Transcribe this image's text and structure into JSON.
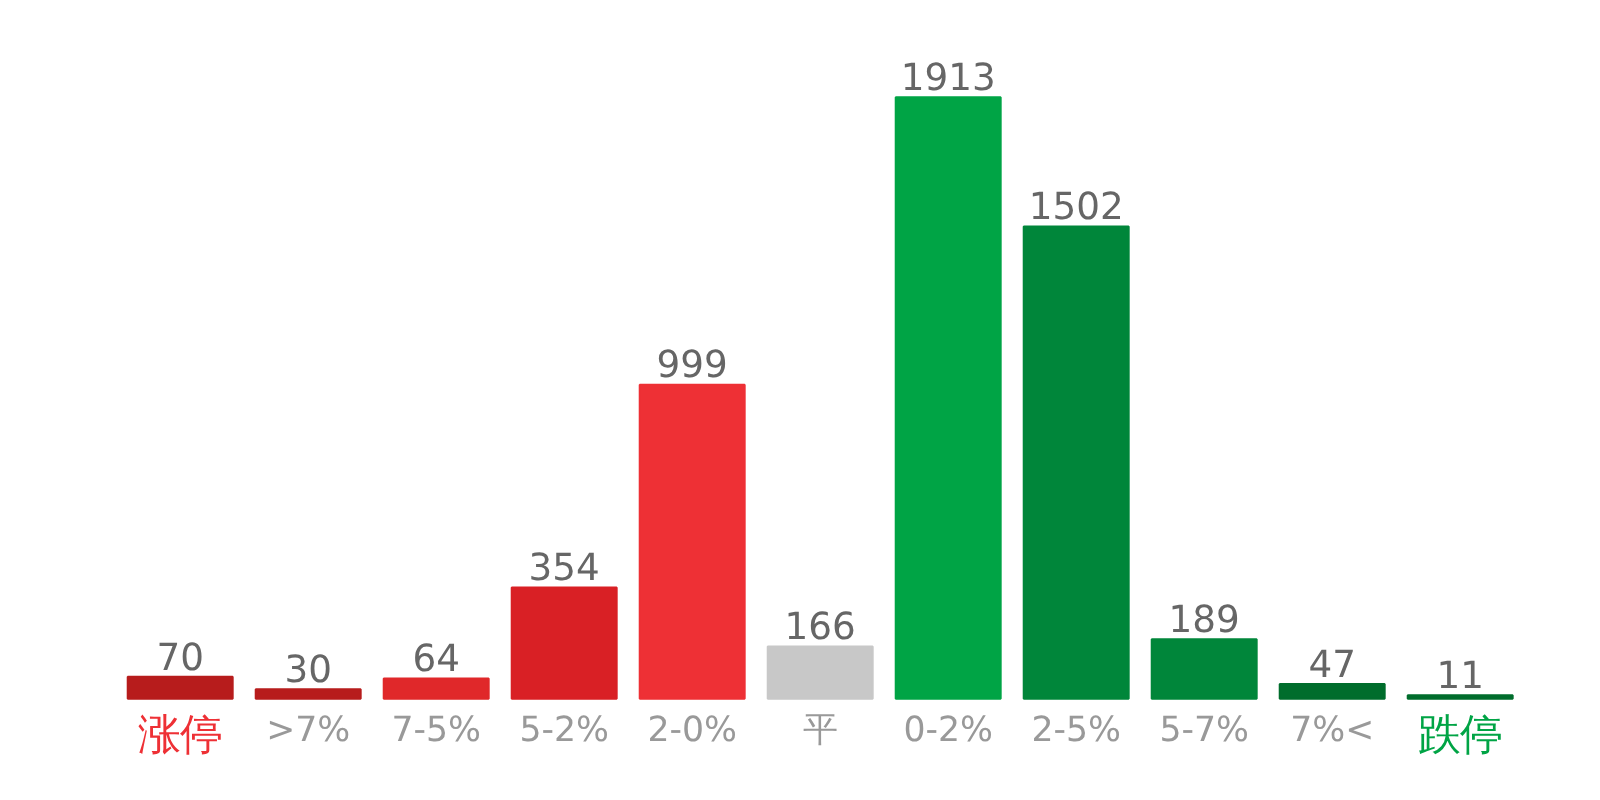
{
  "chart_data": {
    "type": "bar",
    "categories": [
      "涨停",
      ">7%",
      "7-5%",
      "5-2%",
      "2-0%",
      "平",
      "0-2%",
      "2-5%",
      "5-7%",
      "7%<",
      "跌停"
    ],
    "values": [
      70,
      30,
      64,
      354,
      999,
      166,
      1913,
      1502,
      189,
      47,
      11
    ],
    "colors": [
      "#b71c1c",
      "#b71c1c",
      "#e0282a",
      "#d92025",
      "#ee3035",
      "#c8c8c8",
      "#00a445",
      "#00863a",
      "#00863a",
      "#006d2c",
      "#006d2c"
    ],
    "data_labels": true,
    "grid": false
  }
}
